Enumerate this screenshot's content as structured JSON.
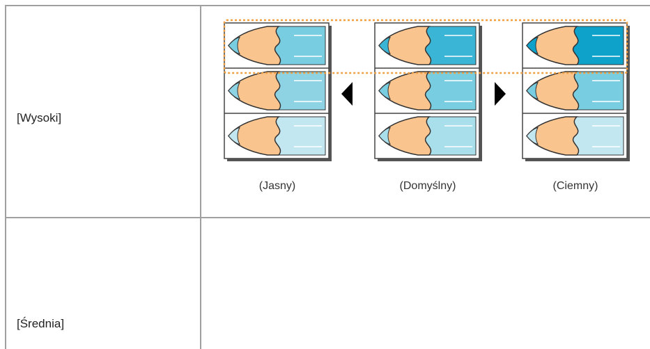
{
  "table": {
    "rows": [
      {
        "label": "[Wysoki]",
        "captions": [
          "(Jasny)",
          "(Domyślny)",
          "(Ciemny)"
        ]
      },
      {
        "label": "[Średnia]"
      }
    ]
  }
}
